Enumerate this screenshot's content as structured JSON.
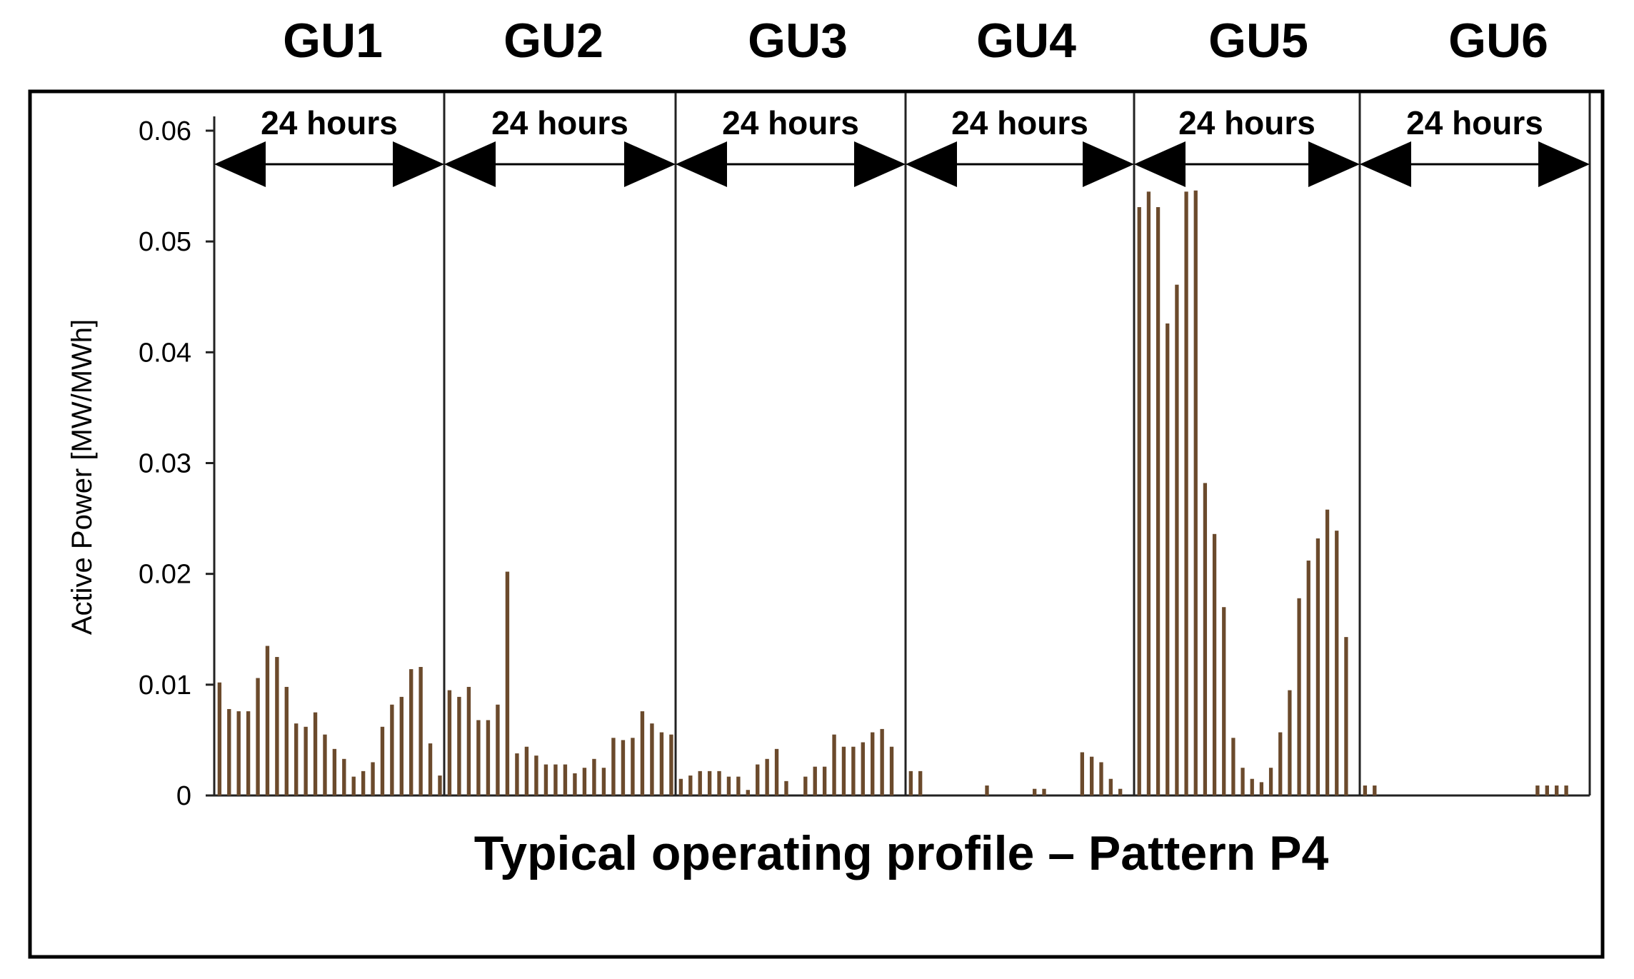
{
  "chart_data": {
    "type": "bar",
    "title": "Typical operating profile – Pattern P4",
    "ylabel": "Active Power  [MW/MWh]",
    "xlabel": "",
    "ylim": [
      0,
      0.06
    ],
    "yticks": [
      "0",
      "0.01",
      "0.02",
      "0.03",
      "0.04",
      "0.05",
      "0.06"
    ],
    "grid": false,
    "bar_color": "#6b4a2c",
    "groups": [
      {
        "name": "GU1",
        "span_label": "24 hours",
        "values": [
          0.0102,
          0.0078,
          0.0076,
          0.0076,
          0.0106,
          0.0135,
          0.0125,
          0.0098,
          0.0065,
          0.0062,
          0.0075,
          0.0055,
          0.0042,
          0.0033,
          0.0017,
          0.0022,
          0.003,
          0.0062,
          0.0082,
          0.0089,
          0.0114,
          0.0116,
          0.0047,
          0.0018
        ]
      },
      {
        "name": "GU2",
        "span_label": "24 hours",
        "values": [
          0.0095,
          0.0089,
          0.0098,
          0.0068,
          0.0068,
          0.0082,
          0.0202,
          0.0038,
          0.0044,
          0.0036,
          0.0028,
          0.0028,
          0.0028,
          0.002,
          0.0025,
          0.0033,
          0.0025,
          0.0052,
          0.005,
          0.0052,
          0.0076,
          0.0065,
          0.0057,
          0.0055
        ]
      },
      {
        "name": "GU3",
        "span_label": "24 hours",
        "values": [
          0.0015,
          0.0018,
          0.0022,
          0.0022,
          0.0022,
          0.0017,
          0.0017,
          0.0005,
          0.0028,
          0.0033,
          0.0042,
          0.0013,
          0.0,
          0.0017,
          0.0026,
          0.0026,
          0.0055,
          0.0044,
          0.0044,
          0.0048,
          0.0057,
          0.006,
          0.0044,
          0.0
        ]
      },
      {
        "name": "GU4",
        "span_label": "24 hours",
        "values": [
          0.0022,
          0.0022,
          0.0,
          0.0,
          0.0,
          0.0,
          0.0,
          0.0,
          0.0009,
          0.0,
          0.0,
          0.0,
          0.0,
          0.0006,
          0.0006,
          0.0,
          0.0,
          0.0,
          0.0039,
          0.0035,
          0.003,
          0.0015,
          0.0006,
          0.0
        ]
      },
      {
        "name": "GU5",
        "span_label": "24 hours",
        "values": [
          0.0531,
          0.0545,
          0.0531,
          0.0426,
          0.0461,
          0.0545,
          0.0546,
          0.0282,
          0.0236,
          0.017,
          0.0052,
          0.0025,
          0.0015,
          0.0012,
          0.0025,
          0.0057,
          0.0095,
          0.0178,
          0.0212,
          0.0232,
          0.0258,
          0.0239,
          0.0143,
          0.0
        ]
      },
      {
        "name": "GU6",
        "span_label": "24 hours",
        "values": [
          0.0009,
          0.0009,
          0.0,
          0.0,
          0.0,
          0.0,
          0.0,
          0.0,
          0.0,
          0.0,
          0.0,
          0.0,
          0.0,
          0.0,
          0.0,
          0.0,
          0.0,
          0.0,
          0.0009,
          0.0009,
          0.0009,
          0.0009,
          0.0,
          0.0
        ]
      }
    ]
  }
}
